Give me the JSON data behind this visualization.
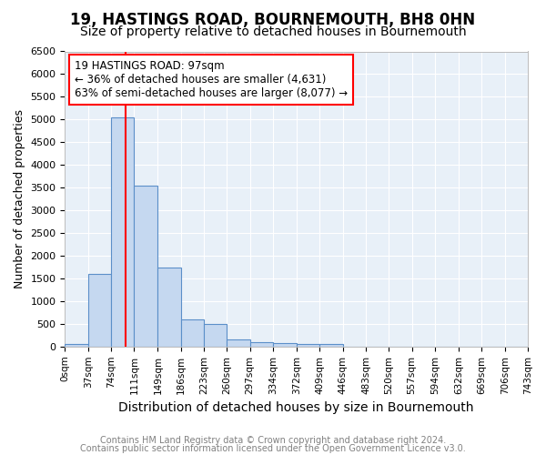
{
  "title1": "19, HASTINGS ROAD, BOURNEMOUTH, BH8 0HN",
  "title2": "Size of property relative to detached houses in Bournemouth",
  "xlabel": "Distribution of detached houses by size in Bournemouth",
  "ylabel": "Number of detached properties",
  "footer1": "Contains HM Land Registry data © Crown copyright and database right 2024.",
  "footer2": "Contains public sector information licensed under the Open Government Licence v3.0.",
  "bin_edges": [
    0,
    37,
    74,
    111,
    149,
    186,
    223,
    260,
    297,
    334,
    372,
    409,
    446,
    483,
    520,
    557,
    594,
    632,
    669,
    706,
    743
  ],
  "bin_heights": [
    50,
    1600,
    5050,
    3550,
    1750,
    600,
    500,
    150,
    100,
    75,
    50,
    50,
    0,
    0,
    0,
    0,
    0,
    0,
    0,
    0
  ],
  "bar_color": "#c5d8f0",
  "bar_edge_color": "#5b8fc9",
  "vline_x": 97,
  "vline_color": "red",
  "annotation_title": "19 HASTINGS ROAD: 97sqm",
  "annotation_line1": "← 36% of detached houses are smaller (4,631)",
  "annotation_line2": "63% of semi-detached houses are larger (8,077) →",
  "annotation_box_color": "white",
  "annotation_box_edge_color": "red",
  "ylim": [
    0,
    6500
  ],
  "yticks": [
    0,
    500,
    1000,
    1500,
    2000,
    2500,
    3000,
    3500,
    4000,
    4500,
    5000,
    5500,
    6000,
    6500
  ],
  "title1_fontsize": 12,
  "title2_fontsize": 10,
  "xlabel_fontsize": 10,
  "ylabel_fontsize": 9,
  "tick_fontsize": 8,
  "footer_fontsize": 7,
  "annotation_fontsize": 8.5,
  "bg_color": "#e8f0f8"
}
